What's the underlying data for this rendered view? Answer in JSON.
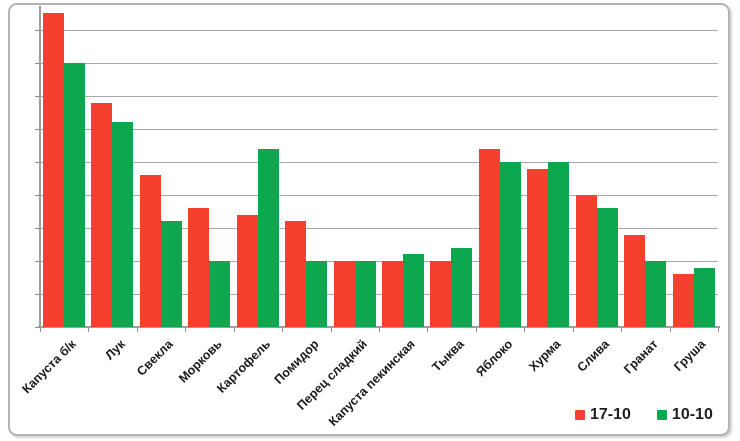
{
  "window": {
    "background": "#ffffff",
    "frame_border_color": "#b3b3b3"
  },
  "chart_data": {
    "type": "bar",
    "title": "",
    "xlabel": "",
    "ylabel": "",
    "categories": [
      "Капуста б/к",
      "Лук",
      "Свекла",
      "Морковь",
      "Картофель",
      "Помидор",
      "Перец сладкий",
      "Капуста пекинская",
      "Тыква",
      "Яблоко",
      "Хурма",
      "Слива",
      "Гранат",
      "Груша"
    ],
    "series": [
      {
        "name": "17-10",
        "color": "#f4402d",
        "values": [
          9.5,
          6.8,
          4.6,
          3.6,
          3.4,
          3.2,
          2.0,
          2.0,
          2.0,
          5.4,
          4.8,
          4.0,
          2.8,
          1.6
        ]
      },
      {
        "name": "10-10",
        "color": "#0ca74f",
        "values": [
          8.0,
          6.2,
          3.2,
          2.0,
          5.4,
          2.0,
          2.0,
          2.2,
          2.4,
          5.0,
          5.0,
          3.6,
          2.0,
          1.8
        ]
      }
    ],
    "ylim": [
      0,
      10
    ],
    "gridline_step": 1,
    "y_tick_labels_visible": false,
    "grid": true,
    "gridline_color": "#a8a8a8",
    "legend_position": "bottom-right",
    "x_label_rotation_deg": 45
  }
}
